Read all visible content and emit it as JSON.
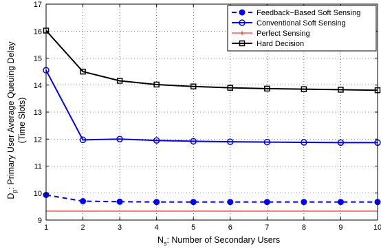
{
  "chart_data": {
    "type": "line",
    "title": "",
    "xlabel": {
      "main": "N",
      "sub": "s",
      "rest": ": Number of Secondary Users"
    },
    "ylabel": {
      "line1_main": "D",
      "line1_sub": "p",
      "line1_rest": ": Primary User Average Queuing Delay",
      "line2": "(Time Slots)"
    },
    "x": [
      1,
      2,
      3,
      4,
      5,
      6,
      7,
      8,
      9,
      10
    ],
    "xlim": [
      1,
      10
    ],
    "ylim": [
      9,
      17
    ],
    "xticks": [
      "1",
      "2",
      "3",
      "4",
      "5",
      "6",
      "7",
      "8",
      "9",
      "10"
    ],
    "yticks": [
      "9",
      "10",
      "11",
      "12",
      "13",
      "14",
      "15",
      "16",
      "17"
    ],
    "grid": true,
    "legend_position": "top-right",
    "series": [
      {
        "name": "Feedback−Based Soft Sensing",
        "color": "#0000ff",
        "dash": "dashed",
        "marker": "filled-circle",
        "values": [
          9.93,
          9.7,
          9.68,
          9.67,
          9.67,
          9.67,
          9.67,
          9.67,
          9.67,
          9.67
        ]
      },
      {
        "name": "Conventional Soft Sensing",
        "color": "#0000ff",
        "dash": "solid",
        "marker": "open-circle",
        "values": [
          14.55,
          11.97,
          12.0,
          11.95,
          11.92,
          11.9,
          11.89,
          11.88,
          11.87,
          11.87
        ]
      },
      {
        "name": "Perfect Sensing",
        "color": "#ff0000",
        "dash": "solid",
        "marker": "plus",
        "values": [
          9.33,
          9.33,
          9.33,
          9.33,
          9.33,
          9.33,
          9.33,
          9.33,
          9.33,
          9.33
        ]
      },
      {
        "name": "Hard Decision",
        "color": "#000000",
        "dash": "solid",
        "marker": "open-square",
        "values": [
          16.02,
          14.5,
          14.16,
          14.02,
          13.95,
          13.9,
          13.87,
          13.85,
          13.83,
          13.81
        ]
      }
    ]
  }
}
